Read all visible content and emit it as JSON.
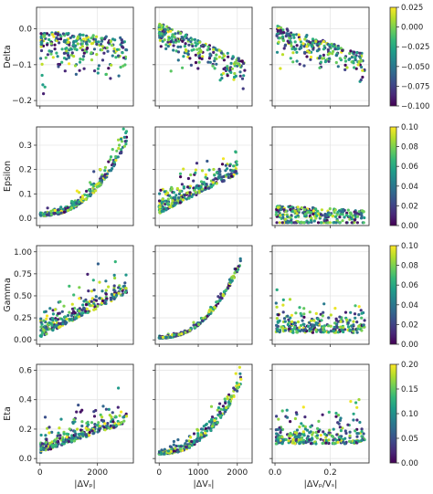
{
  "chart_data": [
    {
      "type": "scatter",
      "row": 0,
      "col": 0,
      "ylabel": "Delta",
      "xlabel": "",
      "xlim": [
        -120,
        3250
      ],
      "ylim": [
        -0.215,
        0.06
      ],
      "xticks": [
        0,
        2000
      ],
      "yticks": [
        -0.2,
        -0.1,
        0.0
      ],
      "ytick_labels": [
        "−0.2",
        "−0.1",
        "0.0"
      ],
      "x_ticklabels_shown": false,
      "trend": "flat",
      "x_spread": 3000,
      "y_base": -0.02,
      "y_slope": -0.02,
      "y_noise": 0.07,
      "n_points": 250,
      "seed": 11
    },
    {
      "type": "scatter",
      "row": 0,
      "col": 1,
      "xlabel": "",
      "xlim": [
        -100,
        2380
      ],
      "ylim": [
        -0.215,
        0.06
      ],
      "xticks": [
        0,
        1000,
        2000
      ],
      "yticks": [
        -0.2,
        -0.1,
        0.0
      ],
      "x_ticklabels_shown": false,
      "y_ticklabels_shown": false,
      "trend": "decreasing",
      "x_spread": 2200,
      "y_base": 0.01,
      "y_slope": -0.11,
      "y_noise": 0.05,
      "n_points": 250,
      "seed": 12
    },
    {
      "type": "scatter",
      "row": 0,
      "col": 2,
      "xlabel": "",
      "xlim": [
        -0.01,
        0.34
      ],
      "ylim": [
        -0.215,
        0.06
      ],
      "xticks": [
        0.0,
        0.2
      ],
      "yticks": [
        -0.2,
        -0.1,
        0.0
      ],
      "x_ticklabels_shown": false,
      "y_ticklabels_shown": false,
      "trend": "decreasing",
      "x_spread": 0.32,
      "y_base": 0.0,
      "y_slope": -0.08,
      "y_noise": 0.05,
      "n_points": 250,
      "seed": 13
    },
    {
      "type": "scatter",
      "row": 1,
      "col": 0,
      "ylabel": "Epsilon",
      "xlabel": "",
      "xlim": [
        -120,
        3250
      ],
      "ylim": [
        -0.03,
        0.375
      ],
      "xticks": [
        0,
        2000
      ],
      "yticks": [
        0.0,
        0.1,
        0.2,
        0.3
      ],
      "ytick_labels": [
        "0.0",
        "0.1",
        "0.2",
        "0.3"
      ],
      "x_ticklabels_shown": false,
      "trend": "exponential",
      "x_spread": 3000,
      "y_base": 0.01,
      "y_slope": 0.3,
      "y_noise": 0.03,
      "n_points": 280,
      "seed": 21
    },
    {
      "type": "scatter",
      "row": 1,
      "col": 1,
      "xlabel": "",
      "xlim": [
        -100,
        2380
      ],
      "ylim": [
        -0.03,
        0.375
      ],
      "xticks": [
        0,
        1000,
        2000
      ],
      "yticks": [
        0.0,
        0.1,
        0.2,
        0.3
      ],
      "x_ticklabels_shown": false,
      "y_ticklabels_shown": false,
      "trend": "increasing",
      "x_spread": 2000,
      "y_base": 0.02,
      "y_slope": 0.16,
      "y_noise": 0.05,
      "n_points": 280,
      "seed": 22
    },
    {
      "type": "scatter",
      "row": 1,
      "col": 2,
      "xlabel": "",
      "xlim": [
        -0.01,
        0.34
      ],
      "ylim": [
        -0.03,
        0.375
      ],
      "xticks": [
        0.0,
        0.2
      ],
      "yticks": [
        0.0,
        0.1,
        0.2,
        0.3
      ],
      "x_ticklabels_shown": false,
      "y_ticklabels_shown": false,
      "trend": "flat",
      "x_spread": 0.32,
      "y_base": 0.04,
      "y_slope": -0.02,
      "y_noise": 0.06,
      "n_points": 280,
      "seed": 23
    },
    {
      "type": "scatter",
      "row": 2,
      "col": 0,
      "ylabel": "Gamma",
      "xlabel": "",
      "xlim": [
        -120,
        3250
      ],
      "ylim": [
        -0.05,
        1.07
      ],
      "xticks": [
        0,
        2000
      ],
      "yticks": [
        0.0,
        0.25,
        0.5,
        0.75,
        1.0
      ],
      "ytick_labels": [
        "0.00",
        "0.25",
        "0.50",
        "0.75",
        "1.00"
      ],
      "x_ticklabels_shown": false,
      "trend": "increasing",
      "x_spread": 3000,
      "y_base": 0.03,
      "y_slope": 0.5,
      "y_noise": 0.15,
      "n_points": 280,
      "seed": 31
    },
    {
      "type": "scatter",
      "row": 2,
      "col": 1,
      "xlabel": "",
      "xlim": [
        -100,
        2380
      ],
      "ylim": [
        -0.05,
        1.07
      ],
      "xticks": [
        0,
        1000,
        2000
      ],
      "yticks": [
        0.0,
        0.25,
        0.5,
        0.75,
        1.0
      ],
      "x_ticklabels_shown": false,
      "y_ticklabels_shown": false,
      "trend": "exponential",
      "x_spread": 2100,
      "y_base": 0.02,
      "y_slope": 0.85,
      "y_noise": 0.04,
      "n_points": 280,
      "seed": 32
    },
    {
      "type": "scatter",
      "row": 2,
      "col": 2,
      "xlabel": "",
      "xlim": [
        -0.01,
        0.34
      ],
      "ylim": [
        -0.05,
        1.07
      ],
      "xticks": [
        0.0,
        0.2
      ],
      "yticks": [
        0.0,
        0.25,
        0.5,
        0.75,
        1.0
      ],
      "x_ticklabels_shown": false,
      "y_ticklabels_shown": false,
      "trend": "flat",
      "x_spread": 0.32,
      "y_base": 0.08,
      "y_slope": 0.0,
      "y_noise": 0.15,
      "n_points": 280,
      "seed": 33
    },
    {
      "type": "scatter",
      "row": 3,
      "col": 0,
      "ylabel": "Eta",
      "xlabel": "|ΔVₚ|",
      "xlim": [
        -120,
        3250
      ],
      "ylim": [
        -0.03,
        0.64
      ],
      "xticks": [
        0,
        2000
      ],
      "xtick_labels": [
        "0",
        "2000"
      ],
      "yticks": [
        0.0,
        0.2,
        0.4,
        0.6
      ],
      "ytick_labels": [
        "0.0",
        "0.2",
        "0.4",
        "0.6"
      ],
      "trend": "increasing",
      "x_spread": 3000,
      "y_base": 0.04,
      "y_slope": 0.2,
      "y_noise": 0.09,
      "n_points": 280,
      "seed": 41
    },
    {
      "type": "scatter",
      "row": 3,
      "col": 1,
      "xlabel": "|ΔVₛ|",
      "xlim": [
        -100,
        2380
      ],
      "ylim": [
        -0.03,
        0.64
      ],
      "xticks": [
        0,
        1000,
        2000
      ],
      "xtick_labels": [
        "0",
        "1000",
        "2000"
      ],
      "yticks": [
        0.0,
        0.2,
        0.4,
        0.6
      ],
      "y_ticklabels_shown": false,
      "trend": "exponential",
      "x_spread": 2100,
      "y_base": 0.03,
      "y_slope": 0.48,
      "y_noise": 0.06,
      "n_points": 280,
      "seed": 42
    },
    {
      "type": "scatter",
      "row": 3,
      "col": 2,
      "xlabel": "|ΔVₚ/Vₛ|",
      "xlim": [
        -0.01,
        0.34
      ],
      "ylim": [
        -0.03,
        0.64
      ],
      "xticks": [
        0.0,
        0.2
      ],
      "xtick_labels": [
        "0.0",
        "0.2"
      ],
      "yticks": [
        0.0,
        0.2,
        0.4,
        0.6
      ],
      "y_ticklabels_shown": false,
      "trend": "flat",
      "x_spread": 0.32,
      "y_base": 0.1,
      "y_slope": 0.0,
      "y_noise": 0.1,
      "n_points": 280,
      "seed": 43
    }
  ],
  "colorbars": [
    {
      "row": 0,
      "min": -0.1,
      "max": 0.025,
      "ticks": [
        0.025,
        0.0,
        -0.025,
        -0.05,
        -0.075,
        -0.1
      ],
      "tick_labels": [
        "0.025",
        "0.000",
        "−0.025",
        "−0.050",
        "−0.075",
        "−0.100"
      ]
    },
    {
      "row": 1,
      "min": 0.0,
      "max": 0.1,
      "ticks": [
        0.1,
        0.08,
        0.06,
        0.04,
        0.02,
        0.0
      ],
      "tick_labels": [
        "0.10",
        "0.08",
        "0.06",
        "0.04",
        "0.02",
        "0.00"
      ]
    },
    {
      "row": 2,
      "min": 0.0,
      "max": 0.1,
      "ticks": [
        0.1,
        0.08,
        0.06,
        0.04,
        0.02,
        0.0
      ],
      "tick_labels": [
        "0.10",
        "0.08",
        "0.06",
        "0.04",
        "0.02",
        "0.00"
      ]
    },
    {
      "row": 3,
      "min": 0.0,
      "max": 0.2,
      "ticks": [
        0.2,
        0.15,
        0.1,
        0.05,
        0.0
      ],
      "tick_labels": [
        "0.20",
        "0.15",
        "0.10",
        "0.05",
        "0.00"
      ]
    }
  ],
  "colormap": "viridis",
  "colors": [
    "#440154",
    "#482878",
    "#3e4989",
    "#31688e",
    "#26828e",
    "#1f9e89",
    "#35b779",
    "#6ece58",
    "#b5de2b",
    "#fde725"
  ],
  "grid": true
}
